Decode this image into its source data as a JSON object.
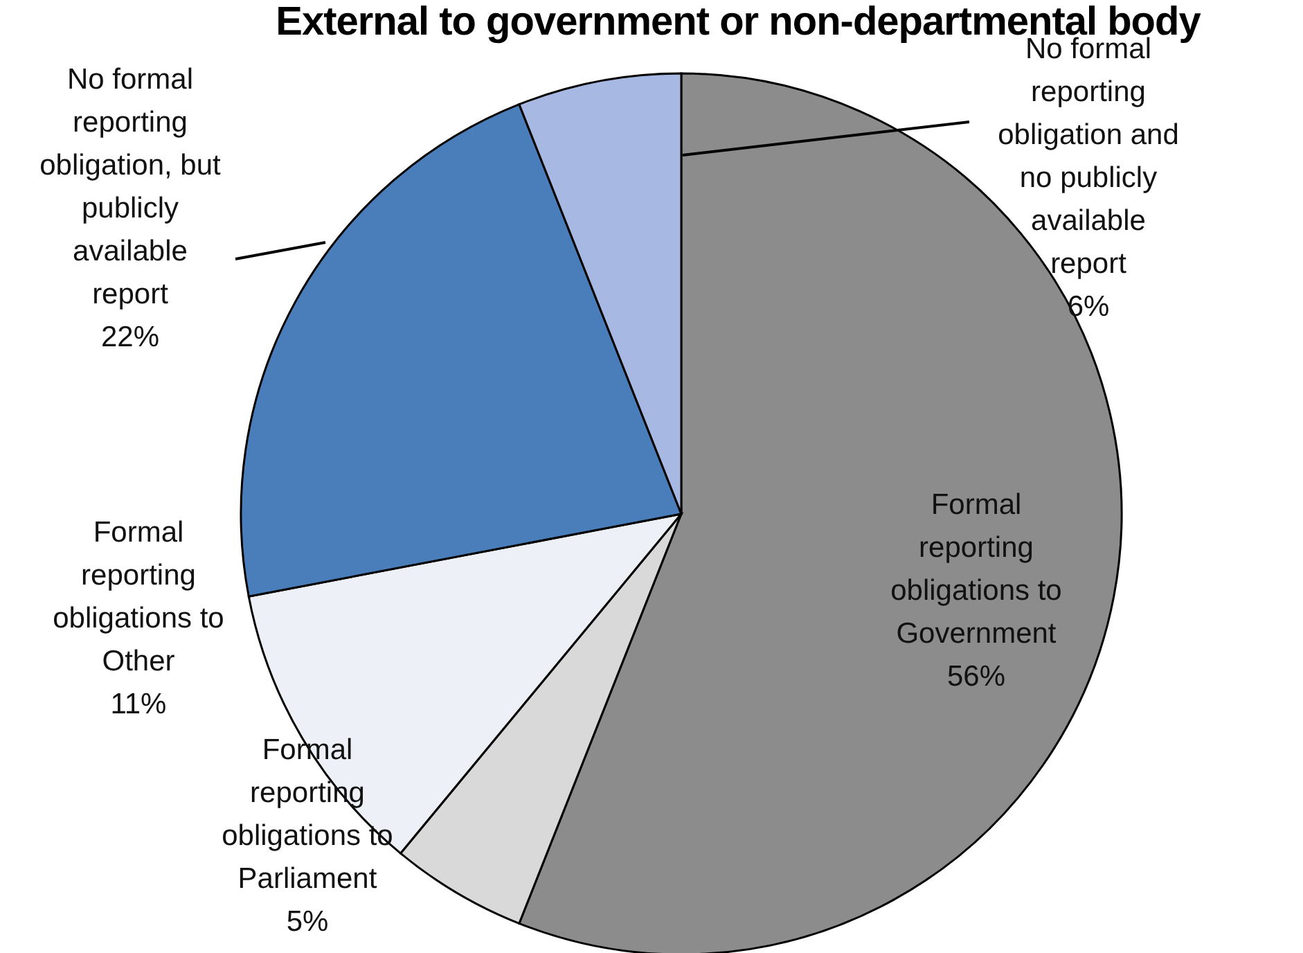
{
  "chart_data": {
    "type": "pie",
    "title": "External to government or non-departmental body",
    "categories": [
      "Formal reporting obligations to Government",
      "Formal reporting obligations to Parliament",
      "Formal reporting obligations to Other",
      "No formal reporting obligation, but publicly available report",
      "No formal reporting obligation and no publicly available report"
    ],
    "values": [
      56,
      5,
      11,
      22,
      6
    ],
    "value_labels": [
      "56%",
      "5%",
      "11%",
      "22%",
      "6%"
    ],
    "colors": [
      "#8c8c8c",
      "#d9d9d9",
      "#eef0f8",
      "#4a7ebb",
      "#a7b9e3"
    ]
  }
}
